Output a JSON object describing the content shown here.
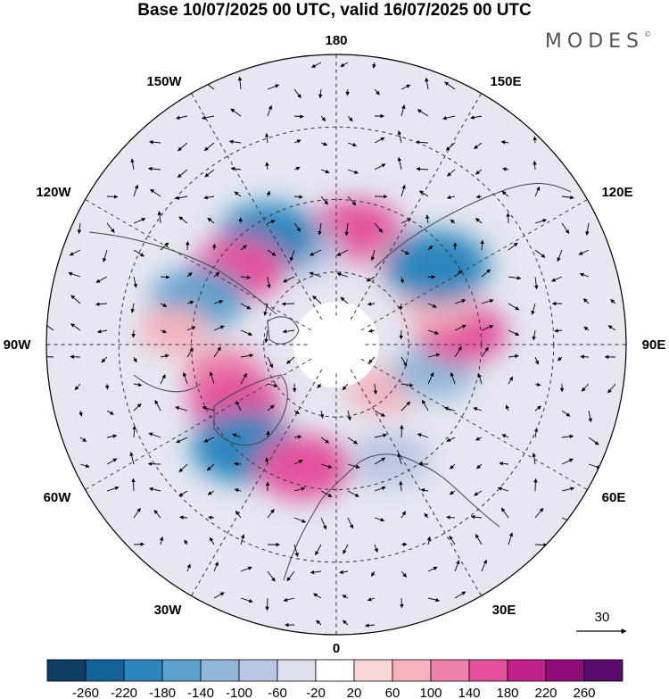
{
  "title": "Base 10/07/2025 00 UTC, valid 16/07/2025 00 UTC",
  "brand": "MODES",
  "brand_mark": "©",
  "longitude_labels": [
    {
      "text": "180",
      "lon": 180
    },
    {
      "text": "150E",
      "lon": 150
    },
    {
      "text": "120E",
      "lon": 120
    },
    {
      "text": "90E",
      "lon": 90
    },
    {
      "text": "60E",
      "lon": 60
    },
    {
      "text": "30E",
      "lon": 30
    },
    {
      "text": "0",
      "lon": 0
    },
    {
      "text": "30W",
      "lon": -30
    },
    {
      "text": "60W",
      "lon": -60
    },
    {
      "text": "90W",
      "lon": -90
    },
    {
      "text": "120W",
      "lon": -120
    },
    {
      "text": "150W",
      "lon": -150
    }
  ],
  "reference_vector_label": "30",
  "colorbar": {
    "labels": [
      "-260",
      "-220",
      "-180",
      "-140",
      "-100",
      "-60",
      "-20",
      "20",
      "60",
      "100",
      "140",
      "180",
      "220",
      "260"
    ],
    "colors": [
      "#0d3d62",
      "#13639a",
      "#2b86bd",
      "#5da1cd",
      "#91b8da",
      "#b9c6e4",
      "#dfe0ef",
      "#ffffff",
      "#f8d7d9",
      "#f4b2bd",
      "#ee82aa",
      "#e3519d",
      "#c12188",
      "#8e0d7b",
      "#5a0a6c"
    ]
  },
  "anomalies": [
    {
      "lon": 170,
      "lat": 58,
      "value": 150
    },
    {
      "lon": 140,
      "lat": 60,
      "value": 60
    },
    {
      "lon": -160,
      "lat": 62,
      "value": -100
    },
    {
      "lon": -148,
      "lat": 55,
      "value": -200
    },
    {
      "lon": -128,
      "lat": 56,
      "value": 160
    },
    {
      "lon": -108,
      "lat": 50,
      "value": -170
    },
    {
      "lon": -95,
      "lat": 45,
      "value": 60
    },
    {
      "lon": -75,
      "lat": 58,
      "value": 100
    },
    {
      "lon": -60,
      "lat": 58,
      "value": 160
    },
    {
      "lon": -42,
      "lat": 52,
      "value": -220
    },
    {
      "lon": -15,
      "lat": 55,
      "value": 170
    },
    {
      "lon": 25,
      "lat": 55,
      "value": -100
    },
    {
      "lon": 45,
      "lat": 72,
      "value": 60
    },
    {
      "lon": 75,
      "lat": 62,
      "value": -120
    },
    {
      "lon": 95,
      "lat": 55,
      "value": 140
    },
    {
      "lon": 112,
      "lat": 60,
      "value": 80
    },
    {
      "lon": 128,
      "lat": 55,
      "value": -220
    }
  ]
}
